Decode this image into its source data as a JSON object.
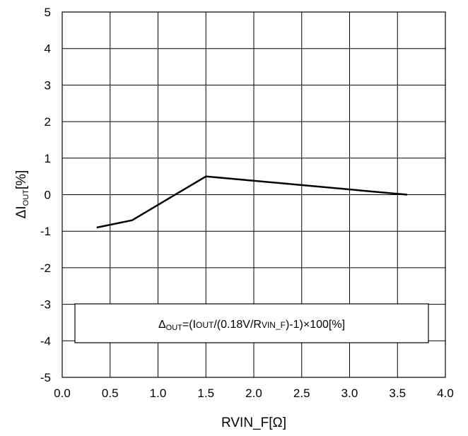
{
  "chart_data": {
    "type": "line",
    "title": "",
    "xlabel": "RVIN_F[Ω]",
    "ylabel": {
      "delta": "Δ",
      "main": "I",
      "sub": "OUT",
      "unit": "[%]"
    },
    "xlim": [
      0.0,
      4.0
    ],
    "ylim": [
      -5,
      5
    ],
    "x_ticks": [
      "0.0",
      "0.5",
      "1.0",
      "1.5",
      "2.0",
      "2.5",
      "3.0",
      "3.5",
      "4.0"
    ],
    "y_ticks": [
      "5",
      "4",
      "3",
      "2",
      "1",
      "0",
      "-1",
      "-2",
      "-3",
      "-4",
      "-5"
    ],
    "grid": true,
    "series": [
      {
        "x": [
          0.36,
          0.73,
          1.5,
          3.6
        ],
        "y": [
          -0.9,
          -0.7,
          0.5,
          0.0
        ]
      }
    ],
    "annotation": {
      "delta": "Δ",
      "sub": "OUT",
      "eq_open": "=(I",
      "iout_sub": "OUT",
      "mid": "/(0.18V/R",
      "r_sub": "VIN_F",
      "tail": ")-1)×100[%]"
    },
    "line_color": "#000000"
  }
}
